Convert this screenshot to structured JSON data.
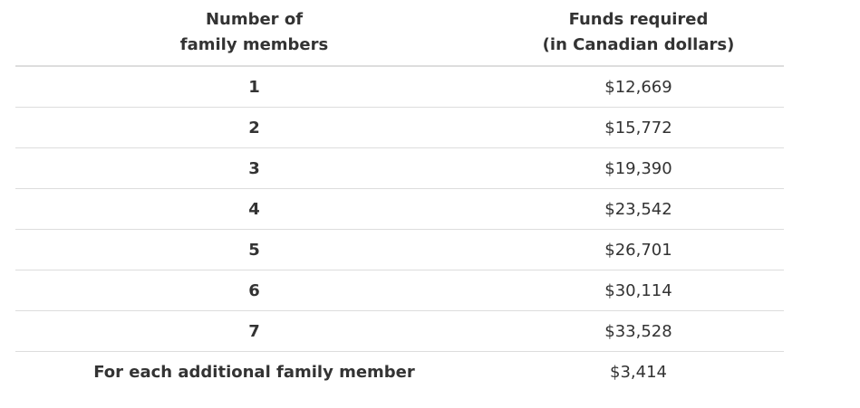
{
  "table": {
    "headers": {
      "members_line1": "Number of",
      "members_line2": "family members",
      "funds_line1": "Funds required",
      "funds_line2": "(in Canadian dollars)"
    },
    "rows": [
      {
        "members": "1",
        "funds": "$12,669"
      },
      {
        "members": "2",
        "funds": "$15,772"
      },
      {
        "members": "3",
        "funds": "$19,390"
      },
      {
        "members": "4",
        "funds": "$23,542"
      },
      {
        "members": "5",
        "funds": "$26,701"
      },
      {
        "members": "6",
        "funds": "$30,114"
      },
      {
        "members": "7",
        "funds": "$33,528"
      },
      {
        "members": "For each additional family member",
        "funds": "$3,414"
      }
    ]
  }
}
